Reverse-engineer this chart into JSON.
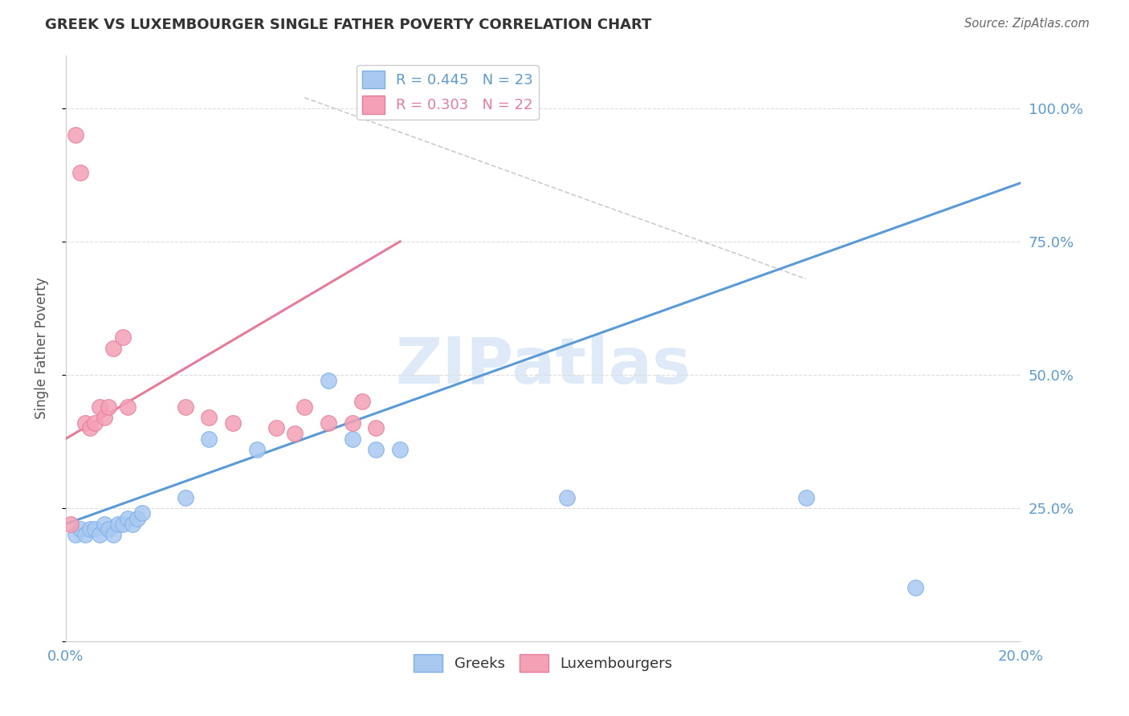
{
  "title": "GREEK VS LUXEMBOURGER SINGLE FATHER POVERTY CORRELATION CHART",
  "source": "Source: ZipAtlas.com",
  "ylabel": "Single Father Poverty",
  "xlim": [
    0.0,
    0.2
  ],
  "ylim": [
    0.0,
    1.1
  ],
  "watermark_text": "ZIPatlas",
  "blue_line_color": "#5b9bd5",
  "pink_line_color": "#e87b9a",
  "dot_blue_color": "#a8c8f0",
  "dot_pink_color": "#f4a0b5",
  "dot_edge_blue": "#7ab0e8",
  "dot_edge_pink": "#e87b9a",
  "diagonal_line_color": "#cccccc",
  "background_color": "#ffffff",
  "grid_color": "#dddddd",
  "title_color": "#333333",
  "axis_color": "#5b9bd5",
  "blue_line_endpoints": [
    [
      0.0,
      0.22
    ],
    [
      0.2,
      0.86
    ]
  ],
  "pink_line_endpoints": [
    [
      0.0,
      0.38
    ],
    [
      0.07,
      0.75
    ]
  ],
  "diagonal_endpoints": [
    [
      0.05,
      1.02
    ],
    [
      0.155,
      0.68
    ]
  ],
  "greeks_x": [
    0.002,
    0.003,
    0.004,
    0.005,
    0.006,
    0.007,
    0.008,
    0.009,
    0.01,
    0.011,
    0.012,
    0.013,
    0.014,
    0.015,
    0.016,
    0.025,
    0.03,
    0.04,
    0.055,
    0.06,
    0.065,
    0.07,
    0.105,
    0.155,
    0.178
  ],
  "greeks_y": [
    0.2,
    0.21,
    0.2,
    0.21,
    0.21,
    0.2,
    0.22,
    0.21,
    0.2,
    0.22,
    0.22,
    0.23,
    0.22,
    0.23,
    0.24,
    0.27,
    0.38,
    0.36,
    0.49,
    0.38,
    0.36,
    0.36,
    0.27,
    0.27,
    0.1
  ],
  "luxembourgers_x": [
    0.001,
    0.002,
    0.003,
    0.004,
    0.005,
    0.006,
    0.007,
    0.008,
    0.009,
    0.01,
    0.012,
    0.013,
    0.025,
    0.03,
    0.035,
    0.044,
    0.048,
    0.05,
    0.055,
    0.06,
    0.062,
    0.065
  ],
  "luxembourgers_y": [
    0.22,
    0.95,
    0.88,
    0.41,
    0.4,
    0.41,
    0.44,
    0.42,
    0.44,
    0.55,
    0.57,
    0.44,
    0.44,
    0.42,
    0.41,
    0.4,
    0.39,
    0.44,
    0.41,
    0.41,
    0.45,
    0.4
  ]
}
